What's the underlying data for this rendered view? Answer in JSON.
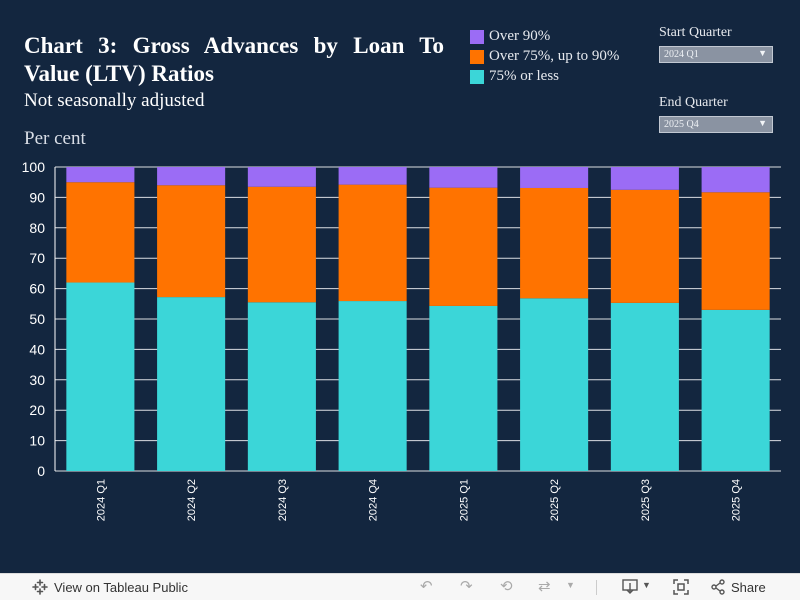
{
  "chart_data": {
    "type": "bar",
    "stacked": true,
    "title": "Chart 3: Gross Advances by Loan To Value (LTV) Ratios",
    "subtitle": "Not seasonally adjusted",
    "ylabel": "Per cent",
    "ylim": [
      0,
      100
    ],
    "yticks": [
      0,
      10,
      20,
      30,
      40,
      50,
      60,
      70,
      80,
      90,
      100
    ],
    "grid": true,
    "legend_position": "top-right",
    "categories": [
      "2024 Q1",
      "2024 Q2",
      "2024 Q3",
      "2024 Q4",
      "2025 Q1",
      "2025 Q2",
      "2025 Q3",
      "2025 Q4"
    ],
    "series": [
      {
        "name": "75% or less",
        "color": "#3bd6d8",
        "values": [
          62.0,
          57.2,
          55.5,
          55.9,
          54.3,
          56.8,
          55.3,
          53.0
        ]
      },
      {
        "name": "Over 75%, up to 90%",
        "color": "#ff7300",
        "values": [
          33.0,
          36.8,
          38.0,
          38.3,
          38.9,
          36.3,
          37.2,
          38.7
        ]
      },
      {
        "name": "Over 90%",
        "color": "#9b6cf5",
        "values": [
          5.0,
          6.0,
          6.5,
          5.8,
          6.8,
          6.9,
          7.5,
          8.3
        ]
      }
    ]
  },
  "legend_items": [
    {
      "label": "Over 90%",
      "color": "#9b6cf5"
    },
    {
      "label": "Over 75%, up to 90%",
      "color": "#ff7300"
    },
    {
      "label": "75% or less",
      "color": "#3bd6d8"
    }
  ],
  "filters": {
    "start": {
      "label": "Start Quarter",
      "value": "2024 Q1"
    },
    "end": {
      "label": "End Quarter",
      "value": "2025 Q4"
    }
  },
  "footer": {
    "view_label": "View on Tableau Public",
    "share_label": "Share"
  },
  "icons": {
    "tableau": "tableau-logo-icon",
    "undo": "undo-icon",
    "redo": "redo-icon",
    "revert": "revert-icon",
    "refresh": "refresh-icon",
    "download": "download-icon",
    "fullscreen": "fullscreen-icon",
    "share": "share-icon"
  }
}
